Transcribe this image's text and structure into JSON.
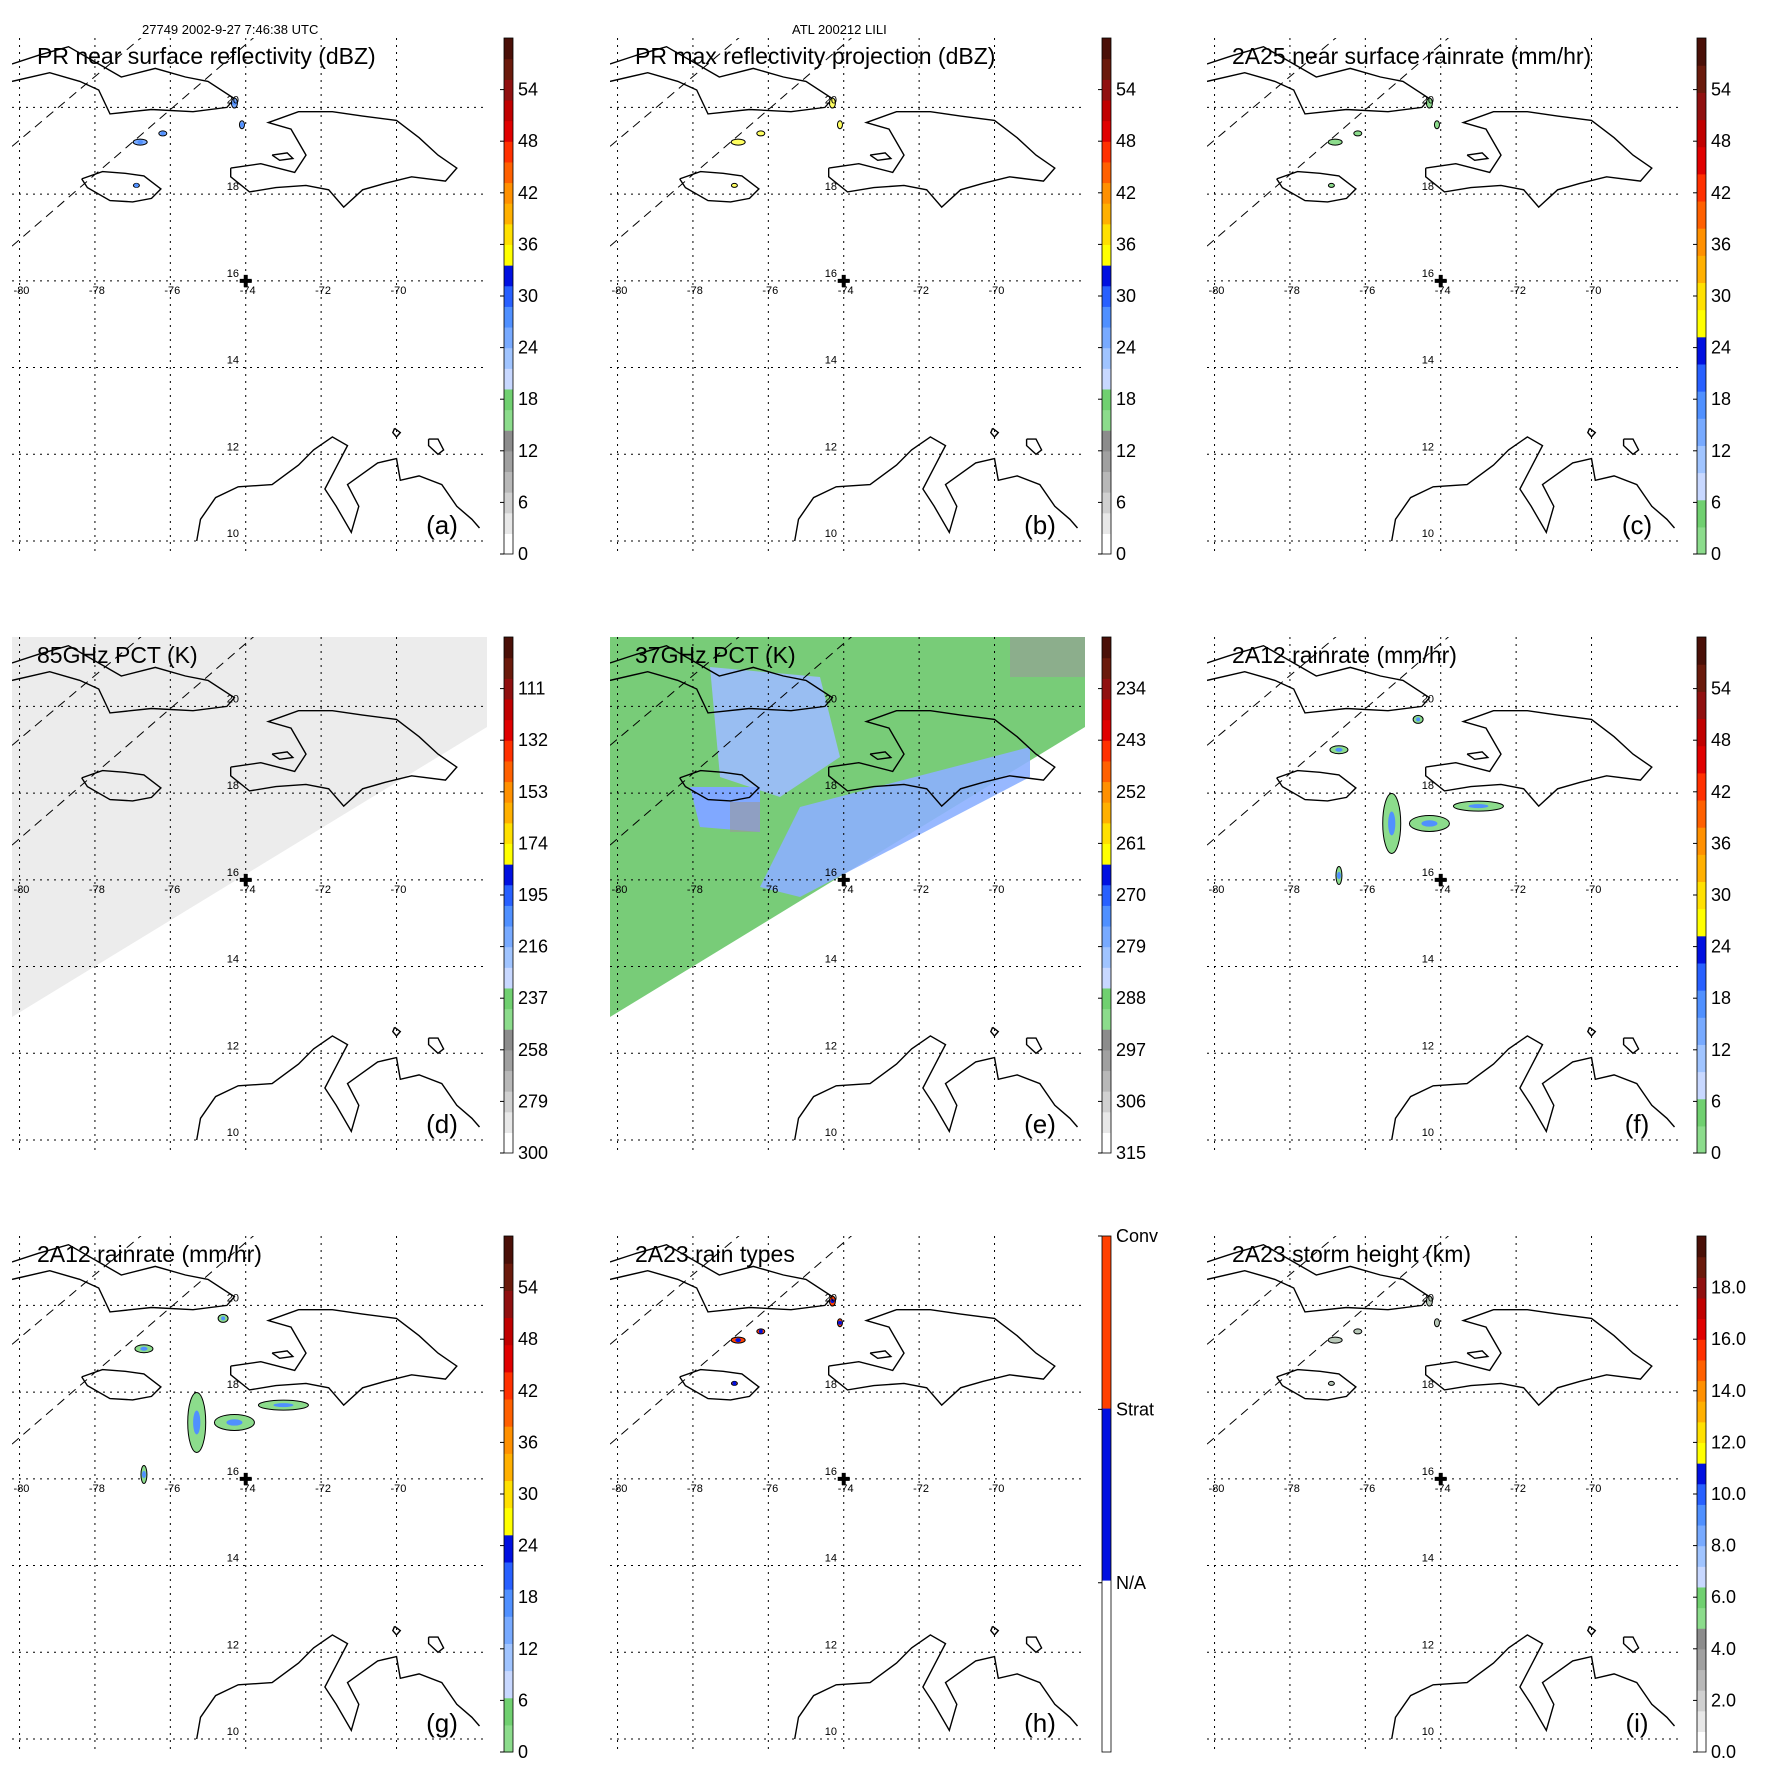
{
  "header": {
    "left": "27749 2002-9-27 7:46:38 UTC",
    "center": "ATL 200212 LILI"
  },
  "longitude_labels": [
    "-80",
    "-78",
    "-76",
    "-74",
    "-72",
    "-70"
  ],
  "latitude_labels": [
    "20",
    "18",
    "16",
    "14",
    "12",
    "10"
  ],
  "colors": {
    "pr_scale": [
      "#ffffff",
      "#e8e8e8",
      "#d0d0d0",
      "#b8b8b8",
      "#a0a0a0",
      "#8c8c8c",
      "#8cdc8c",
      "#70d070",
      "#c8d8ff",
      "#a0c4ff",
      "#78aaff",
      "#5090ff",
      "#2860ff",
      "#0010e0",
      "#ffff00",
      "#ffe000",
      "#ffb000",
      "#ff9000",
      "#ff6000",
      "#ff3000",
      "#e00000",
      "#c00000",
      "#901010",
      "#6a1a0c",
      "#4a1008"
    ],
    "rain_scale": [
      "#8cdc8c",
      "#70d070",
      "#c8d8ff",
      "#a0c4ff",
      "#78aaff",
      "#5090ff",
      "#2860ff",
      "#0010e0",
      "#ffff00",
      "#ffe000",
      "#ffb000",
      "#ff9000",
      "#ff6000",
      "#ff3000",
      "#e00000",
      "#c00000",
      "#901010",
      "#6a1a0c",
      "#4a1008"
    ],
    "pct_scale": [
      "#ffffff",
      "#e8e8e8",
      "#d0d0d0",
      "#b8b8b8",
      "#a0a0a0",
      "#8c8c8c",
      "#8cdc8c",
      "#70d070",
      "#c8d8ff",
      "#a0c4ff",
      "#78aaff",
      "#5090ff",
      "#2860ff",
      "#0010e0",
      "#ffff00",
      "#ffe000",
      "#ffb000",
      "#ff9000",
      "#ff6000",
      "#ff3000",
      "#e00000",
      "#c00000",
      "#901010",
      "#6a1a0c",
      "#4a1008"
    ],
    "raintype_scale": [
      "#ffffff",
      "#0010e0",
      "#ff4000"
    ]
  },
  "panels": [
    {
      "id": "a",
      "title": "PR near surface reflectivity (dBZ)",
      "label": "(a)",
      "scale": "pr_scale",
      "cb_labels": [
        "0",
        "6",
        "12",
        "18",
        "24",
        "30",
        "36",
        "42",
        "48",
        "54"
      ]
    },
    {
      "id": "b",
      "title": "PR max reflectivity projection (dBZ)",
      "label": "(b)",
      "scale": "pr_scale",
      "cb_labels": [
        "0",
        "6",
        "12",
        "18",
        "24",
        "30",
        "36",
        "42",
        "48",
        "54"
      ]
    },
    {
      "id": "c",
      "title": "2A25 near surface rainrate (mm/hr)",
      "label": "(c)",
      "scale": "rain_scale",
      "cb_labels": [
        "0",
        "6",
        "12",
        "18",
        "24",
        "30",
        "36",
        "42",
        "48",
        "54"
      ]
    },
    {
      "id": "d",
      "title": "85GHz PCT (K)",
      "label": "(d)",
      "scale": "pct_scale",
      "cb_labels": [
        "300",
        "279",
        "258",
        "237",
        "216",
        "195",
        "174",
        "153",
        "132",
        "111"
      ]
    },
    {
      "id": "e",
      "title": "37GHz PCT (K)",
      "label": "(e)",
      "scale": "pct_scale",
      "cb_labels": [
        "315",
        "306",
        "297",
        "288",
        "279",
        "270",
        "261",
        "252",
        "243",
        "234"
      ]
    },
    {
      "id": "f",
      "title": "2A12 rainrate (mm/hr)",
      "label": "(f)",
      "scale": "rain_scale",
      "cb_labels": [
        "0",
        "6",
        "12",
        "18",
        "24",
        "30",
        "36",
        "42",
        "48",
        "54"
      ]
    },
    {
      "id": "g",
      "title": "2A12 rainrate (mm/hr)",
      "label": "(g)",
      "scale": "rain_scale",
      "cb_labels": [
        "0",
        "6",
        "12",
        "18",
        "24",
        "30",
        "36",
        "42",
        "48",
        "54"
      ]
    },
    {
      "id": "h",
      "title": "2A23 rain types",
      "label": "(h)",
      "scale": "raintype_scale",
      "cb_labels": [
        "N/A",
        "Strat",
        "Conv"
      ]
    },
    {
      "id": "i",
      "title": "2A23 storm height (km)",
      "label": "(i)",
      "scale": "pr_scale",
      "cb_labels": [
        "0.0",
        "2.0",
        "4.0",
        "6.0",
        "8.0",
        "10.0",
        "12.0",
        "14.0",
        "16.0",
        "18.0"
      ]
    }
  ],
  "storm_center": {
    "lon": -74.0,
    "lat": 16.0
  },
  "extent": {
    "lon_min": -80.2,
    "lon_max": -67.6,
    "lat_min": 9.7,
    "lat_max": 21.6
  }
}
